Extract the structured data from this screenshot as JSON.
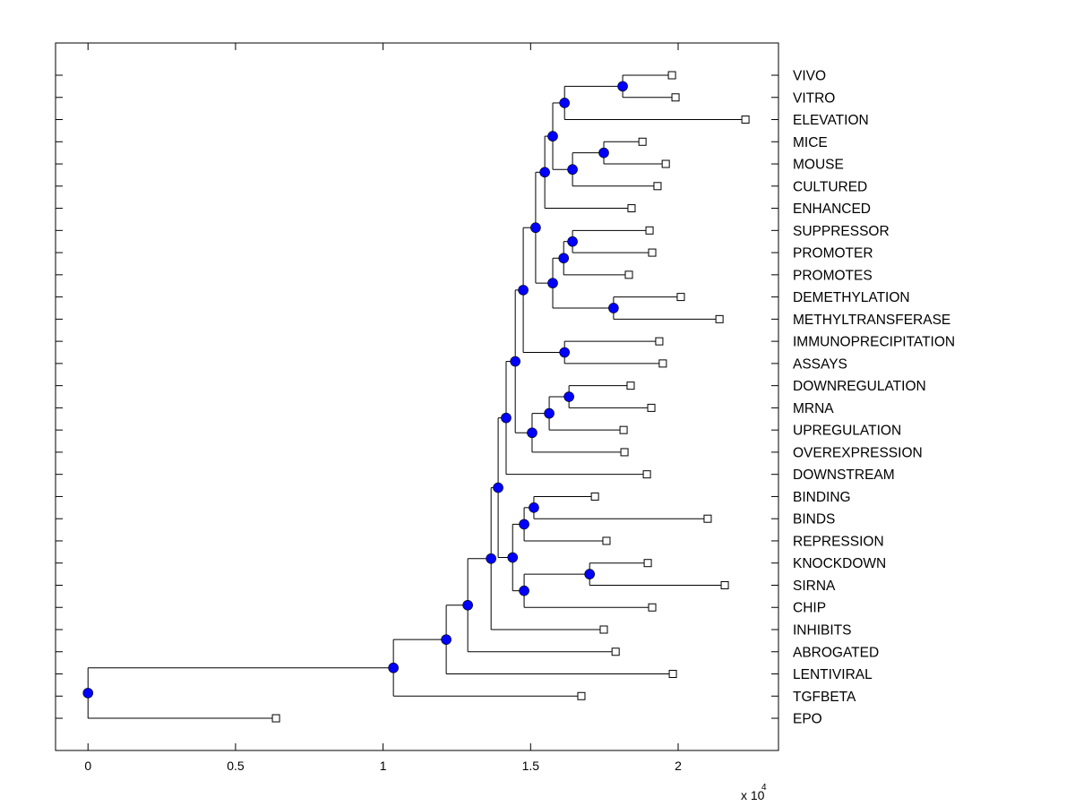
{
  "chart_data": {
    "type": "dendrogram",
    "title": "",
    "xlabel": "",
    "ylabel": "",
    "x_multiplier_label": "x 10",
    "x_multiplier_exponent": "4",
    "xlim": [
      -0.11,
      2.34
    ],
    "xticks": [
      0,
      0.5,
      1,
      1.5,
      2
    ],
    "xtick_labels": [
      "0",
      "0.5",
      "1",
      "1.5",
      "2"
    ],
    "grid": false,
    "colors": {
      "internal_node": "#0000ff",
      "leaf_node": "#ffffff",
      "line": "#000000"
    },
    "tree": {
      "h": 0,
      "children": [
        {
          "h": 1.035,
          "children": [
            {
              "h": 1.214,
              "children": [
                {
                  "h": 1.287,
                  "children": [
                    {
                      "h": 1.366,
                      "children": [
                        {
                          "h": 1.39,
                          "children": [
                            {
                              "h": 1.417,
                              "children": [
                                {
                                  "h": 1.448,
                                  "children": [
                                    {
                                      "h": 1.475,
                                      "children": [
                                        {
                                          "h": 1.517,
                                          "children": [
                                            {
                                              "h": 1.548,
                                              "children": [
                                                {
                                                  "h": 1.575,
                                                  "children": [
                                                    {
                                                      "h": 1.615,
                                                      "children": [
                                                        {
                                                          "h": 1.812,
                                                          "children": [
                                                            {
                                                              "label": "VIVO",
                                                              "h": 1.979
                                                            },
                                                            {
                                                              "label": "VITRO",
                                                              "h": 1.991
                                                            }
                                                          ]
                                                        },
                                                        {
                                                          "label": "ELEVATION",
                                                          "h": 2.228
                                                        }
                                                      ]
                                                    },
                                                    {
                                                      "h": 1.642,
                                                      "children": [
                                                        {
                                                          "h": 1.748,
                                                          "children": [
                                                            {
                                                              "label": "MICE",
                                                              "h": 1.879
                                                            },
                                                            {
                                                              "label": "MOUSE",
                                                              "h": 1.958
                                                            }
                                                          ]
                                                        },
                                                        {
                                                          "label": "CULTURED",
                                                          "h": 1.93
                                                        }
                                                      ]
                                                    }
                                                  ]
                                                },
                                                {
                                                  "label": "ENHANCED",
                                                  "h": 1.842
                                                }
                                              ]
                                            },
                                            {
                                              "h": 1.575,
                                              "children": [
                                                {
                                                  "h": 1.612,
                                                  "children": [
                                                    {
                                                      "h": 1.642,
                                                      "children": [
                                                        {
                                                          "label": "SUPPRESSOR",
                                                          "h": 1.903
                                                        },
                                                        {
                                                          "label": "PROMOTER",
                                                          "h": 1.912
                                                        }
                                                      ]
                                                    },
                                                    {
                                                      "label": "PROMOTES",
                                                      "h": 1.833
                                                    }
                                                  ]
                                                },
                                                {
                                                  "h": 1.781,
                                                  "children": [
                                                    {
                                                      "label": "DEMETHYLATION",
                                                      "h": 2.009
                                                    },
                                                    {
                                                      "label": "METHYLTRANSFERASE",
                                                      "h": 2.14
                                                    }
                                                  ]
                                                }
                                              ]
                                            }
                                          ]
                                        },
                                        {
                                          "h": 1.615,
                                          "children": [
                                            {
                                              "label": "IMMUNOPRECIPITATION",
                                              "h": 1.936
                                            },
                                            {
                                              "label": "ASSAYS",
                                              "h": 1.948
                                            }
                                          ]
                                        }
                                      ]
                                    },
                                    {
                                      "h": 1.505,
                                      "children": [
                                        {
                                          "h": 1.563,
                                          "children": [
                                            {
                                              "h": 1.63,
                                              "children": [
                                                {
                                                  "label": "DOWNREGULATION",
                                                  "h": 1.839
                                                },
                                                {
                                                  "label": "MRNA",
                                                  "h": 1.909
                                                }
                                              ]
                                            },
                                            {
                                              "label": "UPREGULATION",
                                              "h": 1.815
                                            }
                                          ]
                                        },
                                        {
                                          "label": "OVEREXPRESSION",
                                          "h": 1.818
                                        }
                                      ]
                                    }
                                  ]
                                },
                                {
                                  "label": "DOWNSTREAM",
                                  "h": 1.894
                                }
                              ]
                            },
                            {
                              "h": 1.439,
                              "children": [
                                {
                                  "h": 1.478,
                                  "children": [
                                    {
                                      "h": 1.511,
                                      "children": [
                                        {
                                          "label": "BINDING",
                                          "h": 1.718
                                        },
                                        {
                                          "label": "BINDS",
                                          "h": 2.1
                                        }
                                      ]
                                    },
                                    {
                                      "label": "REPRESSION",
                                      "h": 1.757
                                    }
                                  ]
                                },
                                {
                                  "h": 1.478,
                                  "children": [
                                    {
                                      "h": 1.7,
                                      "children": [
                                        {
                                          "label": "KNOCKDOWN",
                                          "h": 1.897
                                        },
                                        {
                                          "label": "SIRNA",
                                          "h": 2.158
                                        }
                                      ]
                                    },
                                    {
                                      "label": "CHIP",
                                      "h": 1.912
                                    }
                                  ]
                                }
                              ]
                            }
                          ]
                        },
                        {
                          "label": "INHIBITS",
                          "h": 1.748
                        }
                      ]
                    },
                    {
                      "label": "ABROGATED",
                      "h": 1.788
                    }
                  ]
                },
                {
                  "label": "LENTIVIRAL",
                  "h": 1.982
                }
              ]
            },
            {
              "label": "TGFBETA",
              "h": 1.672
            }
          ]
        },
        {
          "label": "EPO",
          "h": 0.637
        }
      ]
    }
  }
}
